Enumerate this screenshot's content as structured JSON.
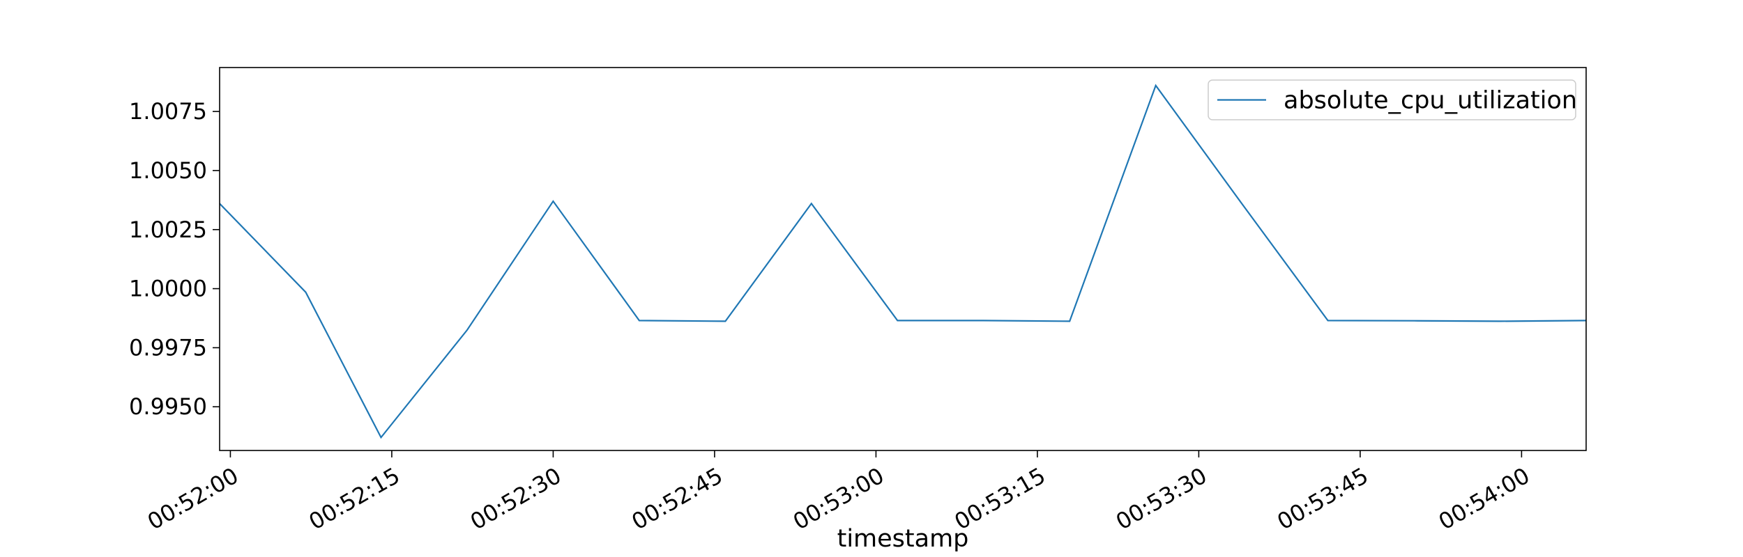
{
  "chart_data": {
    "type": "line",
    "title": "",
    "xlabel": "timestamp",
    "ylabel": "",
    "x": [
      "00:51:59",
      "00:52:07",
      "00:52:14",
      "00:52:22",
      "00:52:30",
      "00:52:38",
      "00:52:46",
      "00:52:54",
      "00:53:02",
      "00:53:10",
      "00:53:18",
      "00:53:26",
      "00:53:34",
      "00:53:42",
      "00:53:50",
      "00:53:58",
      "00:54:06"
    ],
    "series": [
      {
        "name": "absolute_cpu_utilization",
        "color": "#1f77b4",
        "values": [
          1.0036,
          0.99985,
          0.9937,
          0.99825,
          1.0037,
          0.99865,
          0.99862,
          1.0036,
          0.99865,
          0.99865,
          0.99862,
          1.0086,
          1.0036,
          0.99865,
          0.99864,
          0.99862,
          0.99865
        ]
      }
    ],
    "xlim": [
      "00:51:59",
      "00:54:06"
    ],
    "ylim": [
      0.99315,
      1.00936
    ],
    "x_ticks": [
      "00:52:00",
      "00:52:15",
      "00:52:30",
      "00:52:45",
      "00:53:00",
      "00:53:15",
      "00:53:30",
      "00:53:45",
      "00:54:00"
    ],
    "y_ticks": [
      0.995,
      0.9975,
      1.0,
      1.0025,
      1.005,
      1.0075
    ],
    "y_tick_labels": [
      "0.9950",
      "0.9975",
      "1.0000",
      "1.0025",
      "1.0050",
      "1.0075"
    ],
    "grid": false,
    "legend_position": "upper right"
  }
}
